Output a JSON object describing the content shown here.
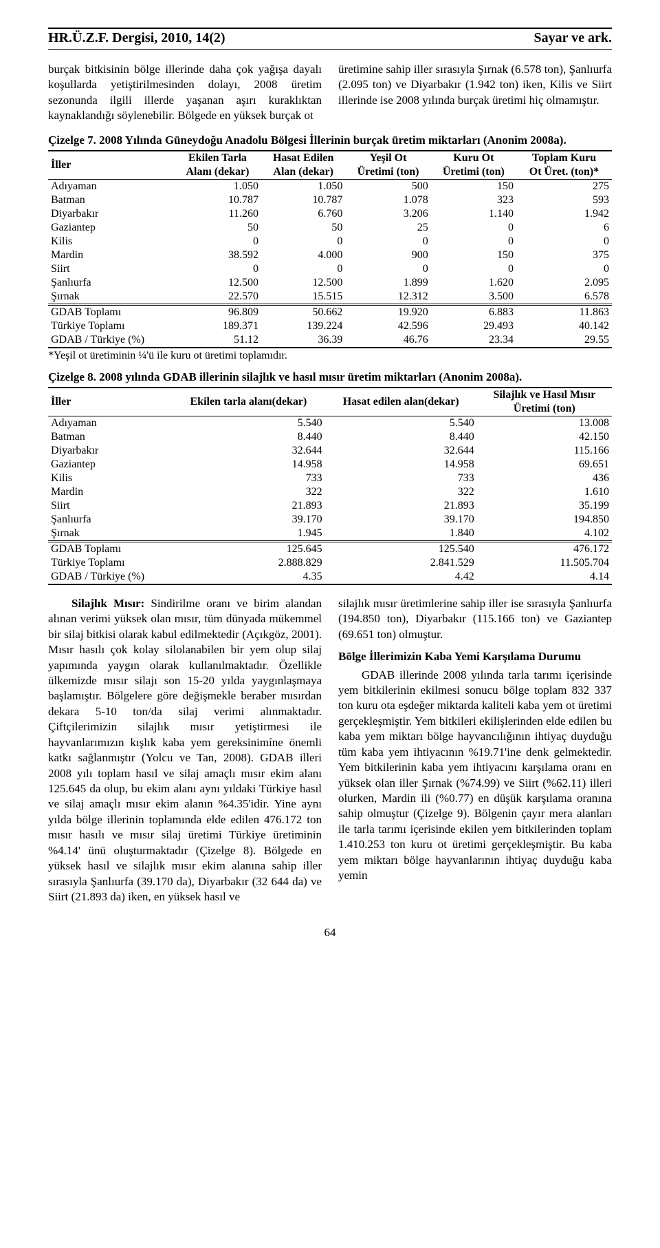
{
  "header": {
    "left": "HR.Ü.Z.F. Dergisi, 2010, 14(2)",
    "right": "Sayar ve ark."
  },
  "intro": {
    "left": "burçak bitkisinin bölge illerinde daha çok yağışa dayalı koşullarda yetiştirilmesinden dolayı, 2008 üretim sezonunda ilgili illerde yaşanan aşırı kuraklıktan kaynaklandığı söylenebilir. Bölgede en yüksek burçak ot",
    "right": "üretimine sahip iller sırasıyla Şırnak (6.578 ton), Şanlıurfa (2.095 ton) ve Diyarbakır (1.942 ton) iken, Kilis ve Siirt illerinde ise 2008 yılında burçak üretimi hiç olmamıştır."
  },
  "table7": {
    "caption": "Çizelge 7. 2008 Yılında Güneydoğu Anadolu Bölgesi İllerinin burçak üretim miktarları (Anonim 2008a).",
    "headers": {
      "c0": "İller",
      "c1a": "Ekilen Tarla",
      "c1b": "Alanı (dekar)",
      "c2a": "Hasat Edilen",
      "c2b": "Alan (dekar)",
      "c3a": "Yeşil Ot",
      "c3b": "Üretimi (ton)",
      "c4a": "Kuru Ot",
      "c4b": "Üretimi (ton)",
      "c5a": "Toplam Kuru",
      "c5b": "Ot Üret. (ton)*"
    },
    "rows": [
      [
        "Adıyaman",
        "1.050",
        "1.050",
        "500",
        "150",
        "275"
      ],
      [
        "Batman",
        "10.787",
        "10.787",
        "1.078",
        "323",
        "593"
      ],
      [
        "Diyarbakır",
        "11.260",
        "6.760",
        "3.206",
        "1.140",
        "1.942"
      ],
      [
        "Gaziantep",
        "50",
        "50",
        "25",
        "0",
        "6"
      ],
      [
        "Kilis",
        "0",
        "0",
        "0",
        "0",
        "0"
      ],
      [
        "Mardin",
        "38.592",
        "4.000",
        "900",
        "150",
        "375"
      ],
      [
        "Siirt",
        "0",
        "0",
        "0",
        "0",
        "0"
      ],
      [
        "Şanlıurfa",
        "12.500",
        "12.500",
        "1.899",
        "1.620",
        "2.095"
      ],
      [
        "Şırnak",
        "22.570",
        "15.515",
        "12.312",
        "3.500",
        "6.578"
      ]
    ],
    "totals": [
      [
        "GDAB Toplamı",
        "96.809",
        "50.662",
        "19.920",
        "6.883",
        "11.863"
      ],
      [
        "Türkiye Toplamı",
        "189.371",
        "139.224",
        "42.596",
        "29.493",
        "40.142"
      ],
      [
        "GDAB / Türkiye (%)",
        "51.12",
        "36.39",
        "46.76",
        "23.34",
        "29.55"
      ]
    ],
    "footnote": "*Yeşil ot üretiminin ¼'ü ile kuru ot üretimi toplamıdır."
  },
  "table8": {
    "caption": "Çizelge 8. 2008 yılında GDAB illerinin silajlık ve hasıl mısır üretim miktarları (Anonim 2008a).",
    "headers": {
      "c0": "İller",
      "c1": "Ekilen tarla alanı(dekar)",
      "c2": "Hasat edilen alan(dekar)",
      "c3a": "Silajlık ve Hasıl Mısır",
      "c3b": "Üretimi (ton)"
    },
    "rows": [
      [
        "Adıyaman",
        "5.540",
        "5.540",
        "13.008"
      ],
      [
        "Batman",
        "8.440",
        "8.440",
        "42.150"
      ],
      [
        "Diyarbakır",
        "32.644",
        "32.644",
        "115.166"
      ],
      [
        "Gaziantep",
        "14.958",
        "14.958",
        "69.651"
      ],
      [
        "Kilis",
        "733",
        "733",
        "436"
      ],
      [
        "Mardin",
        "322",
        "322",
        "1.610"
      ],
      [
        "Siirt",
        "21.893",
        "21.893",
        "35.199"
      ],
      [
        "Şanlıurfa",
        "39.170",
        "39.170",
        "194.850"
      ],
      [
        "Şırnak",
        "1.945",
        "1.840",
        "4.102"
      ]
    ],
    "totals": [
      [
        "GDAB Toplamı",
        "125.645",
        "125.540",
        "476.172"
      ],
      [
        "Türkiye Toplamı",
        "2.888.829",
        "2.841.529",
        "11.505.704"
      ],
      [
        "GDAB / Türkiye (%)",
        "4.35",
        "4.42",
        "4.14"
      ]
    ]
  },
  "body": {
    "left_head": "Silajlık Mısır:",
    "left_p1": " Sindirilme oranı ve birim alandan alınan verimi yüksek olan mısır, tüm dünyada mükemmel bir silaj bitkisi olarak kabul edilmektedir (Açıkgöz, 2001). Mısır hasılı çok kolay silolanabilen bir yem olup silaj yapımında yaygın olarak kullanılmaktadır. Özellikle ülkemizde mısır silajı son 15-20 yılda yaygınlaşmaya başlamıştır. Bölgelere göre değişmekle beraber mısırdan dekara 5-10 ton/da silaj verimi alınmaktadır. Çiftçilerimizin silajlık mısır yetiştirmesi ile hayvanlarımızın kışlık kaba yem gereksinimíne önemli katkı sağlanmıştır (Yolcu ve Tan, 2008). GDAB illeri 2008 yılı toplam hasıl ve silaj amaçlı mısır ekim alanı 125.645 da olup, bu ekim alanı aynı yıldaki Türkiye hasıl ve silaj amaçlı mısır ekim alanın %4.35'idir. Yine aynı yılda bölge illerinin toplamında elde edilen 476.172 ton mısır hasılı ve mısır silaj üretimi Türkiye üretiminin %4.14' ünü oluşturmaktadır (Çizelge 8). Bölgede en yüksek hasıl ve silajlık mısır ekim alanına sahip iller sırasıyla Şanlıurfa (39.170 da), Diyarbakır (32 644 da) ve Siirt (21.893 da) iken, en yüksek hasıl ve",
    "right_p1": "silajlık mısır üretimlerine sahip iller ise sırasıyla Şanlıurfa (194.850 ton), Diyarbakır (115.166 ton) ve Gaziantep (69.651 ton) olmuştur.",
    "right_head": "Bölge İllerimizin Kaba Yemi Karşılama Durumu",
    "right_p2": "GDAB illerinde 2008 yılında tarla tarımı içerisinde yem bitkilerinin ekilmesi sonucu bölge toplam 832 337 ton kuru ota eşdeğer miktarda kaliteli kaba yem ot üretimi gerçekleşmiştir. Yem bitkileri ekilişlerinden elde edilen bu kaba yem miktarı bölge hayvancılığının ihtiyaç duyduğu tüm kaba yem ihtiyacının %19.71'ine denk gelmektedir. Yem bitkilerinin kaba yem ihtiyacını karşılama oranı en yüksek olan iller Şırnak (%74.99) ve Siirt (%62.11) illeri olurken, Mardin ili (%0.77) en düşük karşılama oranına sahip olmuştur (Çizelge 9). Bölgenin çayır mera alanları ile tarla tarımı içerisinde ekilen yem bitkilerinden toplam 1.410.253 ton kuru ot üretimi gerçekleşmiştir. Bu kaba yem miktarı bölge hayvanlarının ihtiyaç duyduğu kaba yemin"
  },
  "pagenum": "64"
}
